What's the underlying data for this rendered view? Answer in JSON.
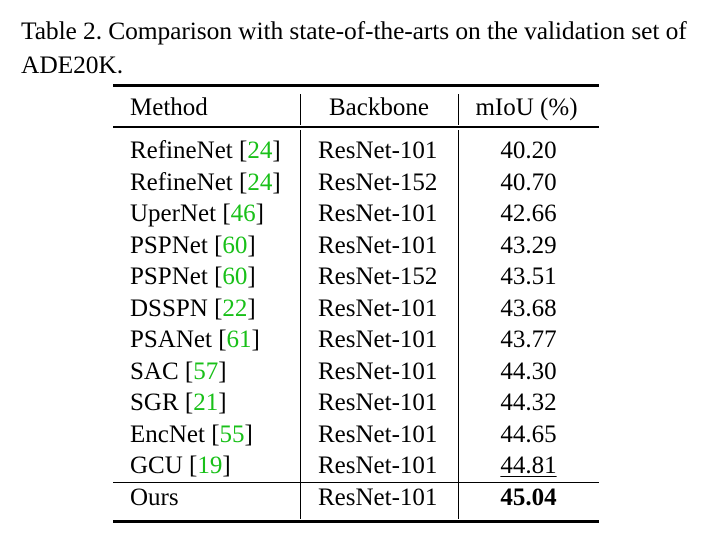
{
  "caption": {
    "line1": "Table 2. Comparison with state-of-the-arts on the validation set of",
    "line2": "ADE20K."
  },
  "table": {
    "headers": [
      "Method",
      "Backbone",
      "mIoU (%)"
    ],
    "rows": [
      {
        "method": "RefineNet",
        "cite": "24",
        "backbone": "ResNet-101",
        "miou": "40.20"
      },
      {
        "method": "RefineNet",
        "cite": "24",
        "backbone": "ResNet-152",
        "miou": "40.70"
      },
      {
        "method": "UperNet",
        "cite": "46",
        "backbone": "ResNet-101",
        "miou": "42.66"
      },
      {
        "method": "PSPNet",
        "cite": "60",
        "backbone": "ResNet-101",
        "miou": "43.29"
      },
      {
        "method": "PSPNet",
        "cite": "60",
        "backbone": "ResNet-152",
        "miou": "43.51"
      },
      {
        "method": "DSSPN",
        "cite": "22",
        "backbone": "ResNet-101",
        "miou": "43.68"
      },
      {
        "method": "PSANet",
        "cite": "61",
        "backbone": "ResNet-101",
        "miou": "43.77"
      },
      {
        "method": "SAC",
        "cite": "57",
        "backbone": "ResNet-101",
        "miou": "44.30"
      },
      {
        "method": "SGR",
        "cite": "21",
        "backbone": "ResNet-101",
        "miou": "44.32"
      },
      {
        "method": "EncNet",
        "cite": "55",
        "backbone": "ResNet-101",
        "miou": "44.65"
      },
      {
        "method": "GCU",
        "cite": "19",
        "backbone": "ResNet-101",
        "miou": "44.81"
      }
    ],
    "ours": {
      "method": "Ours",
      "backbone": "ResNet-101",
      "miou": "45.04"
    },
    "cite_color": "#19c019"
  }
}
